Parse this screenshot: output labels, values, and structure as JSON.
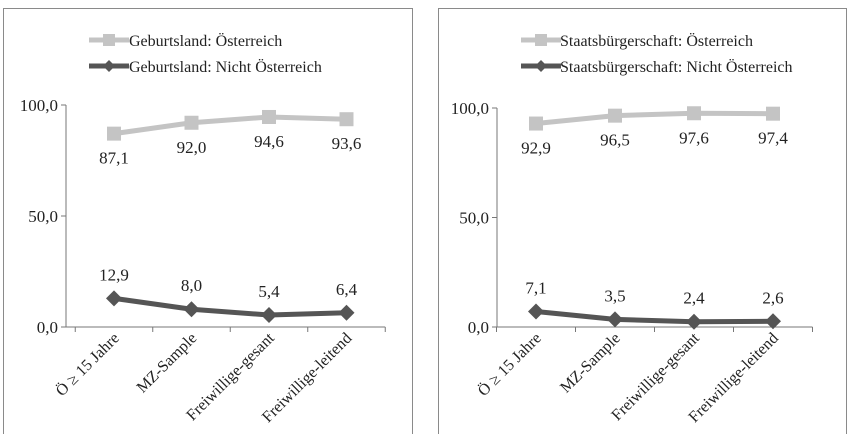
{
  "chart_data": [
    {
      "type": "line",
      "categories": [
        "Ö ≥ 15 Jahre",
        "MZ-Sample",
        "Freiwillige-gesant",
        "Freiwillige-leitend"
      ],
      "ylim": [
        0,
        100
      ],
      "yticks": [
        "0,0",
        "50,0",
        "100,0"
      ],
      "legend_position": "top",
      "grid": false,
      "series": [
        {
          "name": "Geburtsland: Österreich",
          "values": [
            87.1,
            92.0,
            94.6,
            93.6
          ],
          "labels": [
            "87,1",
            "92,0",
            "94,6",
            "93,6"
          ],
          "color": "#c4c4c4",
          "marker": "square"
        },
        {
          "name": "Geburtsland: Nicht Österreich",
          "values": [
            12.9,
            8.0,
            5.4,
            6.4
          ],
          "labels": [
            "12,9",
            "8,0",
            "5,4",
            "6,4"
          ],
          "color": "#555555",
          "marker": "diamond"
        }
      ]
    },
    {
      "type": "line",
      "categories": [
        "Ö ≥ 15 Jahre",
        "MZ-Sample",
        "Freiwillige-gesant",
        "Freiwillige-leitend"
      ],
      "ylim": [
        0,
        100
      ],
      "yticks": [
        "0,0",
        "50,0",
        "100,0"
      ],
      "legend_position": "top",
      "grid": false,
      "series": [
        {
          "name": "Staatsbürgerschaft: Österreich",
          "values": [
            92.9,
            96.5,
            97.6,
            97.4
          ],
          "labels": [
            "92,9",
            "96,5",
            "97,6",
            "97,4"
          ],
          "color": "#c4c4c4",
          "marker": "square"
        },
        {
          "name": "Staatsbürgerschaft: Nicht Österreich",
          "values": [
            7.1,
            3.5,
            2.4,
            2.6
          ],
          "labels": [
            "7,1",
            "3,5",
            "2,4",
            "2,6"
          ],
          "color": "#555555",
          "marker": "diamond"
        }
      ]
    }
  ]
}
